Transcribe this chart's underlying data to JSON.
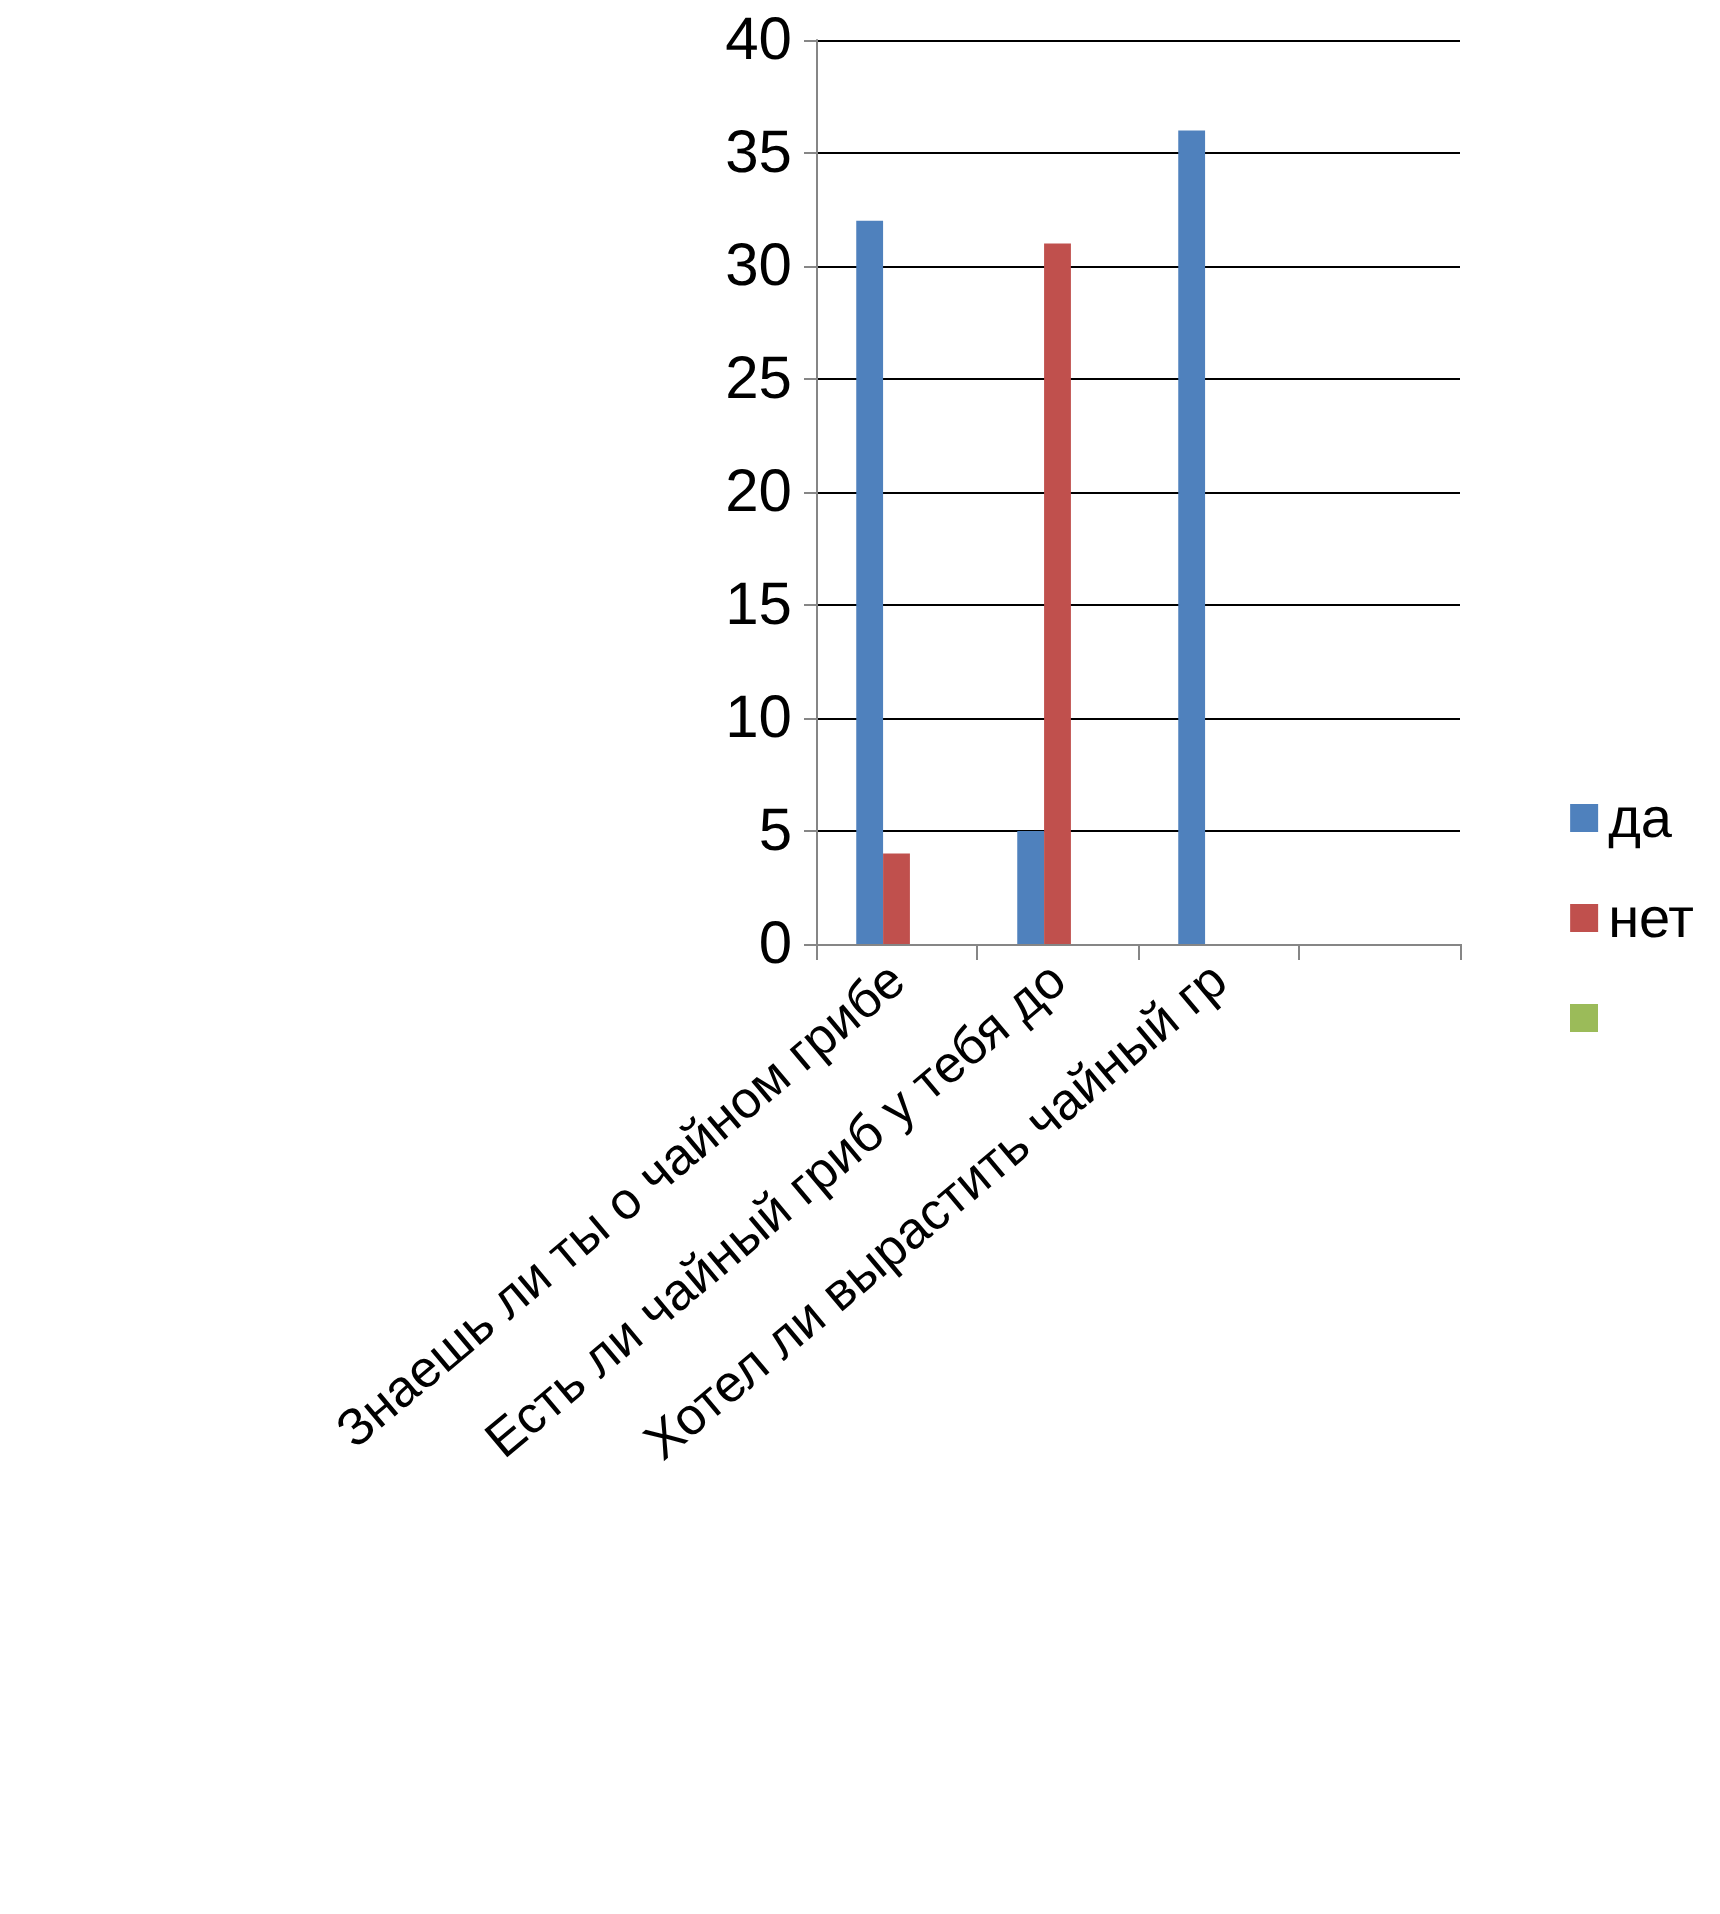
{
  "chart_data": {
    "type": "bar",
    "categories": [
      "Знаешь ли ты о чайном грибе",
      "Есть ли чайный гриб у тебя до",
      "Хотел ли вырастить чайный гр",
      null
    ],
    "series": [
      {
        "name": "да",
        "color": "#4f81bd",
        "values": [
          32,
          5,
          36,
          null
        ]
      },
      {
        "name": "нет",
        "color": "#c0504d",
        "values": [
          4,
          31,
          null,
          null
        ]
      },
      {
        "color": "#9bbb59",
        "values": [
          null,
          null,
          null,
          null
        ]
      }
    ],
    "ylim": [
      0,
      40
    ],
    "yticks": [
      0,
      5,
      10,
      15,
      20,
      25,
      30,
      35,
      40
    ],
    "grid": "y",
    "legend": "right"
  }
}
